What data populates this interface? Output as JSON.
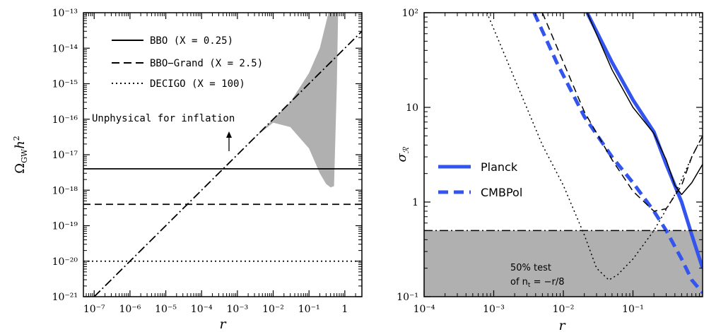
{
  "chart_data": [
    {
      "type": "line",
      "xlabel": "r",
      "ylabel": "ΩGW h²",
      "xscale": "log",
      "yscale": "log",
      "xlim": [
        5e-08,
        3
      ],
      "ylim": [
        1e-21,
        1e-13
      ],
      "xticks": [
        "10⁻⁷",
        "10⁻⁶",
        "10⁻⁵",
        "10⁻⁴",
        "10⁻³",
        "10⁻²",
        "10⁻¹",
        "1"
      ],
      "xtick_values": [
        1e-07,
        1e-06,
        1e-05,
        0.0001,
        0.001,
        0.01,
        0.1,
        1
      ],
      "yticks": [
        "10⁻²¹",
        "10⁻²⁰",
        "10⁻¹⁹",
        "10⁻¹⁸",
        "10⁻¹⁷",
        "10⁻¹⁶",
        "10⁻¹⁵",
        "10⁻¹⁴",
        "10⁻¹³"
      ],
      "ytick_values": [
        1e-21,
        1e-20,
        1e-19,
        1e-18,
        1e-17,
        1e-16,
        1e-15,
        1e-14,
        1e-13
      ],
      "legend_position": "top-left",
      "series": [
        {
          "name": "BBO (X = 0.25)",
          "style": "solid",
          "kind": "hline",
          "y": 4e-18
        },
        {
          "name": "BBO−Grand (X = 2.5)",
          "style": "dashed",
          "kind": "hline",
          "y": 4e-19
        },
        {
          "name": "DECIGO (X = 100)",
          "style": "dotted",
          "kind": "hline",
          "y": 1e-20
        },
        {
          "style": "dashdot",
          "kind": "line",
          "x": [
            1e-07,
            3
          ],
          "y": [
            1e-21,
            3e-14
          ]
        }
      ],
      "band": {
        "color": "#b0b0b0",
        "upper": [
          [
            1e-07,
            1e-21
          ],
          [
            1e-05,
            1e-19
          ],
          [
            0.001,
            1e-17
          ],
          [
            0.01,
            1e-16
          ],
          [
            0.03,
            3e-16
          ],
          [
            0.1,
            2e-15
          ],
          [
            0.2,
            1e-14
          ],
          [
            0.35,
            1e-13
          ]
        ],
        "lower": [
          [
            1e-07,
            1e-21
          ],
          [
            1e-05,
            1e-19
          ],
          [
            0.0001,
            1e-18
          ],
          [
            0.001,
            1e-17
          ],
          [
            0.003,
            3e-17
          ],
          [
            0.01,
            8e-17
          ],
          [
            0.03,
            6e-17
          ],
          [
            0.1,
            1.5e-17
          ],
          [
            0.2,
            3e-18
          ],
          [
            0.3,
            1.5e-18
          ],
          [
            0.4,
            1.2e-18
          ],
          [
            0.5,
            1.3e-18
          ],
          [
            0.6,
            1e-15
          ],
          [
            0.65,
            1e-13
          ]
        ]
      },
      "annotation": {
        "text": "Unphysical for inflation",
        "x": 0.001,
        "y": 1e-16,
        "arrow_to": [
          0.001,
          1e-17
        ]
      }
    },
    {
      "type": "line",
      "xlabel": "r",
      "ylabel": "σR",
      "xscale": "log",
      "yscale": "log",
      "xlim": [
        0.0001,
        1
      ],
      "ylim": [
        0.1,
        100
      ],
      "xticks": [
        "10⁻⁴",
        "10⁻³",
        "10⁻²",
        "10⁻¹"
      ],
      "xtick_values": [
        0.0001,
        0.001,
        0.01,
        0.1
      ],
      "yticks": [
        "10⁻¹",
        "1",
        "10",
        "10²"
      ],
      "ytick_values": [
        0.1,
        1,
        10,
        100
      ],
      "legend_position": "middle-left",
      "series": [
        {
          "name": "Planck",
          "style": "solid",
          "color": "#3355ee",
          "width": 5,
          "x": [
            0.022,
            0.05,
            0.1,
            0.2,
            0.3,
            0.5,
            0.7,
            1.0
          ],
          "y": [
            100,
            30,
            12,
            5.5,
            2.5,
            1.0,
            0.45,
            0.2
          ]
        },
        {
          "name": "CMBPol",
          "style": "dashed",
          "color": "#3355ee",
          "width": 5,
          "x": [
            0.0038,
            0.008,
            0.02,
            0.05,
            0.1,
            0.2,
            0.3,
            0.5,
            0.7,
            1.0
          ],
          "y": [
            100,
            30,
            8,
            3,
            1.6,
            0.8,
            0.5,
            0.25,
            0.15,
            0.11
          ]
        },
        {
          "style": "solid",
          "color": "#000000",
          "width": 1.5,
          "x": [
            0.022,
            0.05,
            0.1,
            0.2,
            0.3,
            0.4,
            0.5,
            0.7,
            1.0
          ],
          "y": [
            100,
            25,
            10,
            5.3,
            2.8,
            1.5,
            1.2,
            1.6,
            2.5
          ]
        },
        {
          "style": "dashed",
          "color": "#000000",
          "width": 1.5,
          "x": [
            0.005,
            0.01,
            0.02,
            0.05,
            0.1,
            0.2,
            0.3,
            0.5,
            0.7,
            1.0
          ],
          "y": [
            100,
            30,
            9,
            2.8,
            1.3,
            0.8,
            0.85,
            1.5,
            3,
            5
          ]
        },
        {
          "style": "dotted",
          "color": "#000000",
          "width": 1.5,
          "x": [
            0.0008,
            0.002,
            0.005,
            0.01,
            0.02,
            0.03,
            0.045,
            0.06,
            0.1,
            0.2,
            0.4,
            0.7,
            1.0
          ],
          "y": [
            100,
            20,
            4,
            1.5,
            0.45,
            0.2,
            0.15,
            0.17,
            0.25,
            0.5,
            1.2,
            3,
            5
          ]
        },
        {
          "style": "dashdot",
          "color": "#000000",
          "width": 1.5,
          "kind": "hline",
          "y": 0.5
        }
      ],
      "shaded_region": {
        "color": "#b0b0b0",
        "y_below": 0.5
      },
      "annotation": {
        "line1": "50% test",
        "line2_prefix": "of n",
        "line2_sub": "t",
        "line2_suffix": " = −r/8"
      }
    }
  ]
}
